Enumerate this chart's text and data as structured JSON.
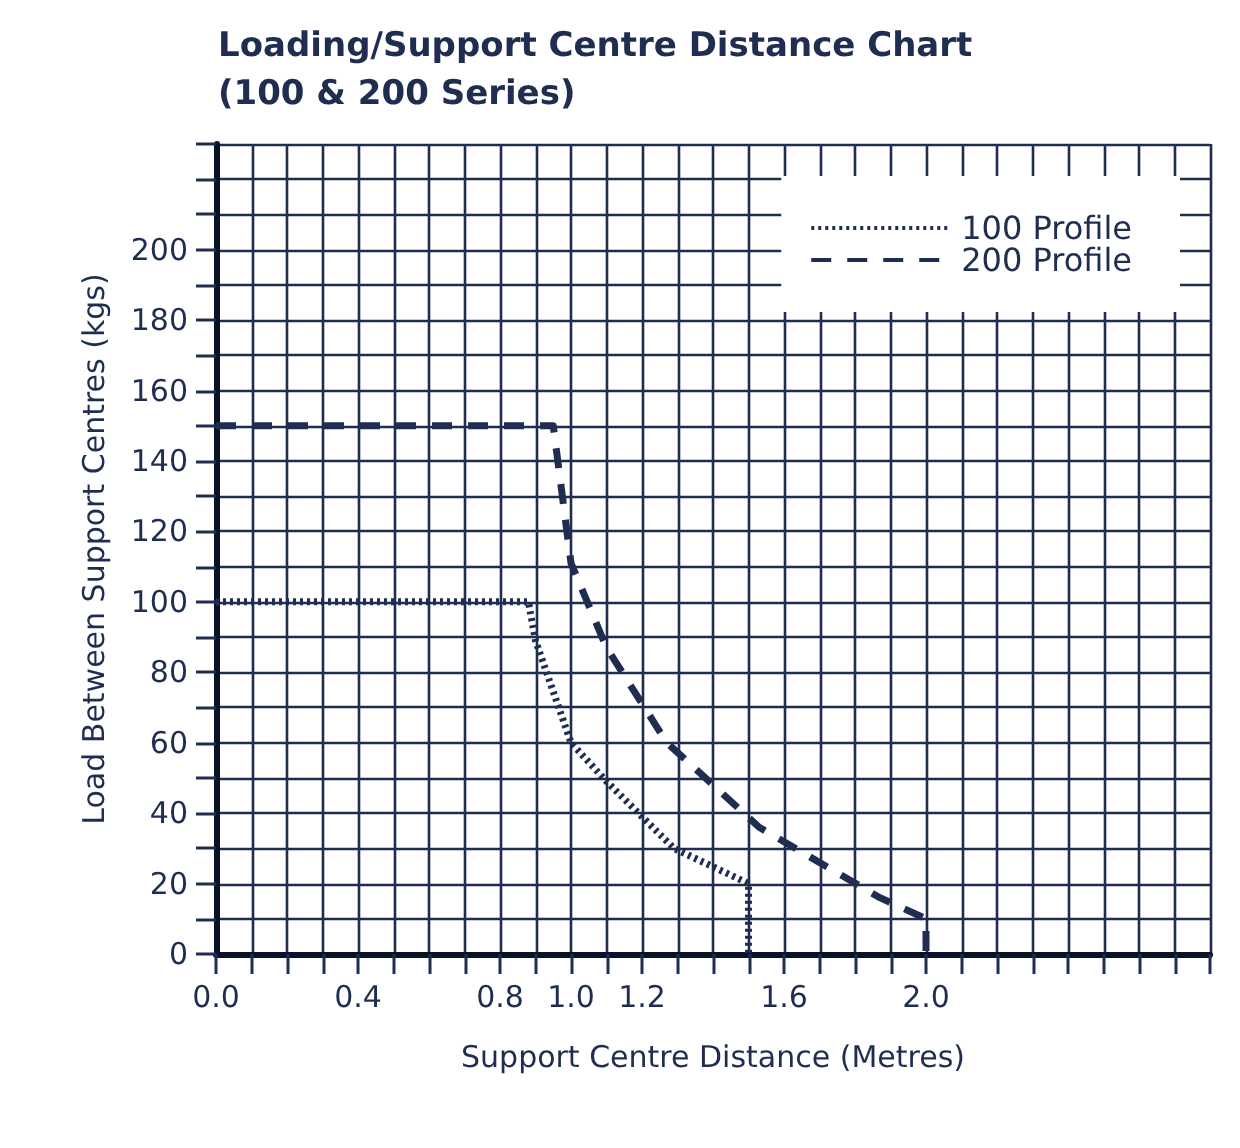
{
  "chart_data": {
    "type": "line",
    "title": "Loading/Support Centre Distance Chart (100 & 200 Series)",
    "xlabel": "Support Centre Distance (Metres)",
    "ylabel": "Load Between Support Centres (kgs)",
    "series": [
      {
        "name": "100 Profile",
        "color": "#1f2d50",
        "line_style": "dotted",
        "x": [
          0,
          0.88,
          0.9,
          1.0,
          1.1,
          1.29,
          1.5,
          1.5
        ],
        "values": [
          100,
          100,
          89,
          60,
          49,
          30,
          20,
          0
        ]
      },
      {
        "name": "200 Profile",
        "color": "#1f2d50",
        "line_style": "dashed",
        "x": [
          0,
          0.95,
          1.0,
          1.1,
          1.27,
          1.53,
          1.87,
          2.0,
          2.0
        ],
        "values": [
          150,
          150,
          111,
          87,
          60,
          36,
          16,
          10,
          0
        ]
      }
    ],
    "xlim": [
      0,
      2.8
    ],
    "xticks": [
      {
        "value": 0,
        "label": "0.0"
      },
      {
        "value": 0.1,
        "label": null
      },
      {
        "value": 0.2,
        "label": null
      },
      {
        "value": 0.3,
        "label": null
      },
      {
        "value": 0.4,
        "label": "0.4"
      },
      {
        "value": 0.5,
        "label": null
      },
      {
        "value": 0.6,
        "label": null
      },
      {
        "value": 0.7,
        "label": null
      },
      {
        "value": 0.8,
        "label": "0.8"
      },
      {
        "value": 0.9,
        "label": null
      },
      {
        "value": 1.0,
        "label": "1.0"
      },
      {
        "value": 1.1,
        "label": null
      },
      {
        "value": 1.2,
        "label": "1.2"
      },
      {
        "value": 1.3,
        "label": null
      },
      {
        "value": 1.4,
        "label": null
      },
      {
        "value": 1.5,
        "label": null
      },
      {
        "value": 1.6,
        "label": "1.6"
      },
      {
        "value": 1.7,
        "label": null
      },
      {
        "value": 1.8,
        "label": null
      },
      {
        "value": 1.9,
        "label": null
      },
      {
        "value": 2.0,
        "label": "2.0"
      },
      {
        "value": 2.1,
        "label": null
      },
      {
        "value": 2.2,
        "label": null
      },
      {
        "value": 2.3,
        "label": null
      },
      {
        "value": 2.4,
        "label": null
      },
      {
        "value": 2.5,
        "label": null
      },
      {
        "value": 2.6,
        "label": null
      },
      {
        "value": 2.7,
        "label": null
      },
      {
        "value": 2.8,
        "label": null
      }
    ],
    "ylim": [
      0,
      230
    ],
    "yticks": [
      0,
      {
        "value": 10,
        "label": null
      },
      20,
      {
        "value": 30,
        "label": null
      },
      40,
      {
        "value": 50,
        "label": null
      },
      60,
      {
        "value": 70,
        "label": null
      },
      80,
      {
        "value": 90,
        "label": null
      },
      100,
      {
        "value": 110,
        "label": null
      },
      120,
      {
        "value": 130,
        "label": null
      },
      140,
      {
        "value": 150,
        "label": null
      },
      160,
      {
        "value": 170,
        "label": null
      },
      180,
      {
        "value": 190,
        "label": null
      },
      200,
      {
        "value": 210,
        "label": null
      },
      {
        "value": 220,
        "label": null
      },
      {
        "value": 230,
        "label": null
      }
    ],
    "grid": true,
    "legend": "top right",
    "marker": "none"
  }
}
